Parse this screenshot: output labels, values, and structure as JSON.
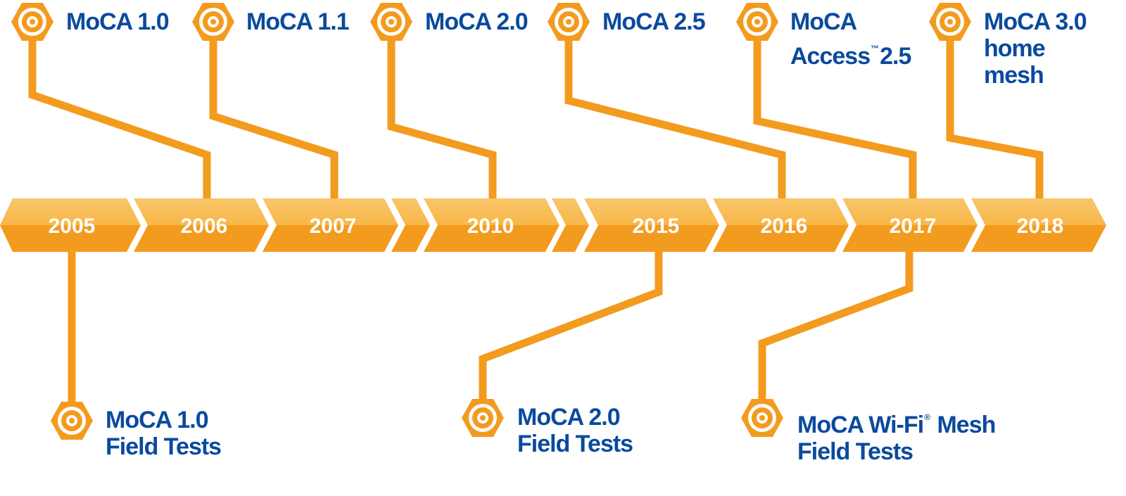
{
  "timeline": {
    "years": [
      "2005",
      "2006",
      "2007",
      "",
      "2010",
      "",
      "2015",
      "2016",
      "2017",
      "2018"
    ]
  },
  "events_top": [
    {
      "line1": "MoCA 1.0"
    },
    {
      "line1": "MoCA 1.1"
    },
    {
      "line1": "MoCA 2.0"
    },
    {
      "line1": "MoCA 2.5"
    },
    {
      "line1": "MoCA",
      "line2a": "Access",
      "sup": "™",
      "line2b": "2.5"
    },
    {
      "line1": "MoCA 3.0",
      "line2": "home",
      "line3": "mesh"
    }
  ],
  "events_bottom": [
    {
      "line1": "MoCA 1.0",
      "line2": "Field Tests"
    },
    {
      "line1": "MoCA 2.0",
      "line2": "Field Tests"
    },
    {
      "line1a": "MoCA Wi-Fi",
      "sup": "®",
      "line1b": " Mesh",
      "line2": "Field Tests"
    }
  ],
  "colors": {
    "chevron_top": "#f9c56a",
    "chevron_bottom": "#f39b1e",
    "connector": "#f39b1e",
    "label": "#0a4a9e",
    "icon_ring": "#f39b1e",
    "icon_core": "#ffffff"
  },
  "icons": {
    "node": "hexagon-coax-connector-icon"
  }
}
